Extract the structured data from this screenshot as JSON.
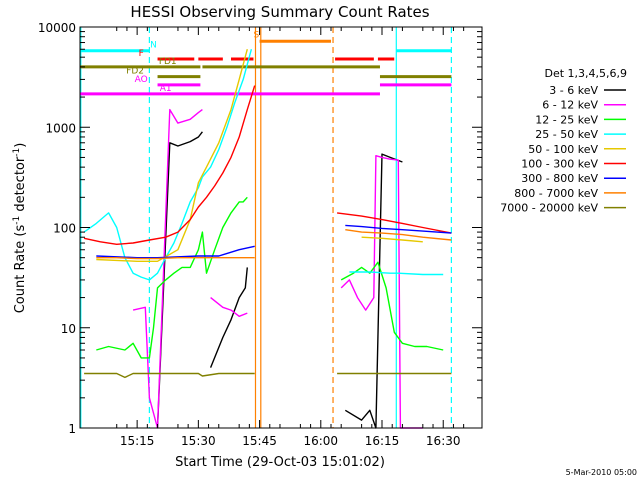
{
  "chart_data": {
    "type": "line",
    "title": "HESSI Observing Summary Count Rates",
    "xlabel": "Start Time (29-Oct-03 15:01:02)",
    "ylabel_main": "Count Rate (s",
    "ylabel_sup1": "-1",
    "ylabel_mid": " detector",
    "ylabel_sup2": "-1",
    "ylabel_end": ")",
    "footer": "5-Mar-2010 05:00",
    "x_unit": "minutes after 15:00 UT",
    "xlim": [
      1.0,
      99.5
    ],
    "ylim": [
      1,
      10000
    ],
    "y_scale": "log",
    "x_ticks": [
      {
        "value": 15,
        "label": "15:15"
      },
      {
        "value": 30,
        "label": "15:30"
      },
      {
        "value": 45,
        "label": "15:45"
      },
      {
        "value": 60,
        "label": "16:00"
      },
      {
        "value": 75,
        "label": "16:15"
      },
      {
        "value": 90,
        "label": "16:30"
      }
    ],
    "y_ticks": [
      {
        "value": 1,
        "label": "1"
      },
      {
        "value": 10,
        "label": "10"
      },
      {
        "value": 100,
        "label": "100"
      },
      {
        "value": 1000,
        "label": "1000"
      },
      {
        "value": 10000,
        "label": "10000"
      }
    ],
    "legend_title": "Det 1,3,4,5,6,9",
    "legend_position": "right",
    "series": [
      {
        "name": "3 - 6 keV",
        "color": "#000000",
        "x": [
          1,
          10,
          18,
          20,
          23,
          25,
          28,
          30,
          31,
          31.2,
          33,
          36,
          38,
          40,
          41.5,
          42,
          43.8,
          63.5,
          66,
          70,
          72,
          73.5,
          75,
          77,
          80,
          92
        ],
        "y": [
          null,
          null,
          null,
          1,
          700,
          650,
          720,
          800,
          900,
          null,
          4,
          8,
          12,
          20,
          25,
          40,
          null,
          null,
          1.5,
          1.2,
          1.5,
          1,
          540,
          500,
          450,
          null
        ]
      },
      {
        "name": "6 - 12 keV",
        "color": "#ff00ff",
        "x": [
          1,
          10,
          14,
          17,
          18,
          20,
          23,
          25,
          28,
          30,
          31,
          31.2,
          33,
          36,
          38,
          40,
          42,
          43.5,
          63.5,
          65,
          67,
          69,
          71,
          73,
          73.5,
          75,
          77,
          79,
          79.5,
          85,
          92
        ],
        "y": [
          null,
          null,
          15,
          16,
          2,
          1,
          1500,
          1100,
          1200,
          1400,
          1500,
          null,
          20,
          16,
          15,
          13,
          14,
          null,
          null,
          25,
          30,
          20,
          15,
          20,
          520,
          500,
          480,
          470,
          1,
          1,
          null
        ]
      },
      {
        "name": "12 - 25 keV",
        "color": "#00ff00",
        "x": [
          1,
          5,
          8,
          12,
          14,
          16,
          18,
          19,
          20,
          22,
          24,
          26,
          28,
          30,
          31,
          32,
          34,
          36,
          38,
          40,
          41,
          42,
          43.8,
          63.5,
          65,
          68,
          70,
          72,
          74,
          76,
          78,
          80,
          83,
          86,
          90,
          92
        ],
        "y": [
          null,
          6,
          6.5,
          6,
          7,
          5,
          5,
          10,
          25,
          30,
          35,
          40,
          40,
          60,
          90,
          35,
          60,
          100,
          140,
          180,
          180,
          200,
          null,
          null,
          30,
          35,
          40,
          35,
          45,
          25,
          9,
          7,
          6.5,
          6.5,
          6,
          null
        ]
      },
      {
        "name": "25 - 50 keV",
        "color": "#00ffff",
        "x": [
          1,
          2,
          5,
          8,
          10,
          12,
          14,
          16,
          18,
          20,
          22,
          24,
          26,
          28,
          30,
          31,
          33,
          35,
          37,
          39,
          41,
          43,
          43.8,
          63.5,
          67,
          72,
          77,
          79,
          85,
          90,
          92
        ],
        "y": [
          null,
          90,
          110,
          140,
          100,
          50,
          35,
          32,
          30,
          35,
          50,
          70,
          110,
          180,
          250,
          320,
          400,
          600,
          1000,
          1800,
          3000,
          6000,
          null,
          null,
          36,
          36,
          35,
          35,
          34,
          34,
          null
        ]
      },
      {
        "name": "50 - 100 keV",
        "color": "#e6c800",
        "x": [
          1,
          5,
          10,
          15,
          20,
          25,
          28,
          30,
          32,
          35,
          38,
          40,
          42,
          43.8,
          63.5,
          70,
          75,
          80,
          85,
          92
        ],
        "y": [
          null,
          48,
          47,
          46,
          46,
          60,
          120,
          280,
          400,
          700,
          1500,
          3000,
          6000,
          null,
          null,
          80,
          78,
          75,
          72,
          null
        ]
      },
      {
        "name": "100 - 300 keV",
        "color": "#ff0000",
        "x": [
          1,
          2,
          6,
          10,
          14,
          18,
          22,
          25,
          28,
          30,
          32,
          34,
          36,
          38,
          40,
          42,
          43.8,
          63.5,
          64,
          70,
          75,
          80,
          85,
          92
        ],
        "y": [
          null,
          78,
          72,
          68,
          70,
          75,
          80,
          90,
          120,
          160,
          200,
          260,
          350,
          500,
          800,
          1500,
          2600,
          null,
          140,
          130,
          120,
          110,
          100,
          88
        ]
      },
      {
        "name": "300 - 800 keV",
        "color": "#0000ff",
        "x": [
          1,
          5,
          10,
          15,
          20,
          25,
          30,
          35,
          40,
          43.8,
          63.5,
          66,
          70,
          75,
          80,
          85,
          92
        ],
        "y": [
          null,
          52,
          51,
          50,
          50,
          51,
          52,
          52,
          60,
          65,
          null,
          105,
          102,
          98,
          95,
          92,
          88
        ]
      },
      {
        "name": "800 - 7000 keV",
        "color": "#ff8000",
        "x": [
          1,
          5,
          10,
          15,
          20,
          25,
          30,
          35,
          40,
          43.8,
          63.5,
          66,
          70,
          75,
          80,
          85,
          92
        ],
        "y": [
          null,
          50,
          50,
          49,
          49,
          50,
          50,
          50,
          50,
          50,
          null,
          95,
          90,
          88,
          85,
          80,
          75
        ]
      },
      {
        "name": "7000 - 20000 keV",
        "color": "#808000",
        "x": [
          1,
          2,
          6,
          10,
          12,
          14,
          17,
          20,
          25,
          30,
          31,
          35,
          40,
          43.8,
          63.5,
          64,
          68,
          72,
          76,
          80,
          85,
          92
        ],
        "y": [
          null,
          3.5,
          3.5,
          3.5,
          3.2,
          3.5,
          3.5,
          3.5,
          3.5,
          3.5,
          3.3,
          3.5,
          3.5,
          3.5,
          null,
          3.5,
          3.5,
          3.5,
          3.5,
          3.5,
          3.5,
          3.5
        ]
      }
    ],
    "flags": [
      {
        "label": "N",
        "color": "#00ffff",
        "y": 5800,
        "segments": [
          [
            1,
            18
          ],
          [
            78.5,
            92
          ]
        ],
        "dashed": false
      },
      {
        "label": "F",
        "color": "#ff0000",
        "y": 4800,
        "segments": [
          [
            20,
            29
          ],
          [
            30,
            36
          ],
          [
            38,
            43.5
          ],
          [
            63.5,
            73
          ],
          [
            74,
            78
          ]
        ],
        "dashed": false
      },
      {
        "label": "FD1",
        "color": "#808000",
        "y": 4000,
        "segments": [
          [
            1,
            30.5
          ],
          [
            31,
            74.5
          ]
        ],
        "dashed": false
      },
      {
        "label": "FD2",
        "color": "#808000",
        "y": 3200,
        "segments": [
          [
            20,
            30.5
          ],
          [
            74.5,
            92
          ]
        ],
        "dashed": false
      },
      {
        "label": "AO",
        "color": "#ff00ff",
        "y": 2650,
        "segments": [
          [
            20,
            30.5
          ],
          [
            74.5,
            92
          ]
        ],
        "dashed": false
      },
      {
        "label": "A1",
        "color": "#ff00ff",
        "y": 2150,
        "segments": [
          [
            1,
            74.5
          ]
        ],
        "dashed": false
      },
      {
        "label": "S",
        "color": "#ff8000",
        "y": 7200,
        "segments": [
          [
            45,
            62.5
          ]
        ],
        "dashed": false
      }
    ],
    "vertical_markers": [
      {
        "x": 1.2,
        "color": "#00ffff",
        "dashed": false
      },
      {
        "x": 18.0,
        "color": "#00ffff",
        "dashed": true
      },
      {
        "x": 44.0,
        "color": "#ff8000",
        "dashed": false
      },
      {
        "x": 45.3,
        "color": "#ff8000",
        "dashed": false
      },
      {
        "x": 63.0,
        "color": "#ff8000",
        "dashed": true
      },
      {
        "x": 78.5,
        "color": "#00ffff",
        "dashed": false
      },
      {
        "x": 92.0,
        "color": "#00ffff",
        "dashed": true
      }
    ]
  }
}
